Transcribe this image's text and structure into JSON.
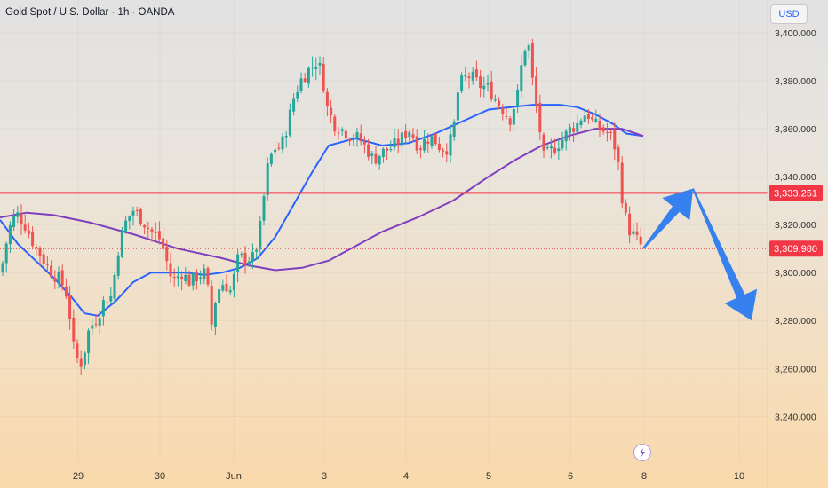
{
  "header": {
    "title": "Gold Spot / U.S. Dollar · 1h · OANDA",
    "currency_label": "USD"
  },
  "colors": {
    "up": "#26a69a",
    "down": "#ef5350",
    "price_line": "#f23645",
    "ma_fast": "#2962ff",
    "ma_slow": "#7e3fbf",
    "arrow": "#2b7bf0"
  },
  "chart_data": {
    "type": "candlestick",
    "symbol": "XAUUSD",
    "yticks": [
      3400,
      3380,
      3360,
      3340,
      3320,
      3300,
      3280,
      3260,
      3240
    ],
    "ytick_labels": [
      "3,400.000",
      "3,380.000",
      "3,360.000",
      "3,340.000",
      "3,320.000",
      "3,300.000",
      "3,280.000",
      "3,260.000",
      "3,240.000"
    ],
    "ylim": [
      3231,
      3410
    ],
    "xtick_labels": [
      "29",
      "30",
      "Jun",
      "3",
      "4",
      "5",
      "6",
      "8",
      "10"
    ],
    "price_labels": [
      {
        "label": "3,333.251",
        "value": 3333.251,
        "style": "line"
      },
      {
        "label": "3,309.980",
        "value": 3309.98,
        "style": "dotted"
      }
    ],
    "series": [
      {
        "name": "fast MA",
        "points": [
          [
            0,
            3322
          ],
          [
            20,
            3312
          ],
          [
            40,
            3305
          ],
          [
            60,
            3298
          ],
          [
            80,
            3290
          ],
          [
            95,
            3283
          ],
          [
            110,
            3282
          ],
          [
            130,
            3288
          ],
          [
            150,
            3296
          ],
          [
            170,
            3300
          ],
          [
            190,
            3300
          ],
          [
            210,
            3300
          ],
          [
            230,
            3299
          ],
          [
            250,
            3300
          ],
          [
            270,
            3302
          ],
          [
            290,
            3306
          ],
          [
            310,
            3315
          ],
          [
            330,
            3328
          ],
          [
            350,
            3341
          ],
          [
            370,
            3353
          ],
          [
            400,
            3356
          ],
          [
            430,
            3353
          ],
          [
            460,
            3354
          ],
          [
            490,
            3358
          ],
          [
            520,
            3363
          ],
          [
            550,
            3368
          ],
          [
            575,
            3369
          ],
          [
            600,
            3370
          ],
          [
            630,
            3370
          ],
          [
            650,
            3369
          ],
          [
            670,
            3366
          ],
          [
            690,
            3362
          ],
          [
            705,
            3358
          ],
          [
            724,
            3357
          ]
        ]
      },
      {
        "name": "slow MA",
        "points": [
          [
            0,
            3323
          ],
          [
            30,
            3325
          ],
          [
            60,
            3324
          ],
          [
            100,
            3321
          ],
          [
            150,
            3316
          ],
          [
            200,
            3310
          ],
          [
            250,
            3306
          ],
          [
            280,
            3303
          ],
          [
            310,
            3301
          ],
          [
            340,
            3302
          ],
          [
            370,
            3305
          ],
          [
            400,
            3311
          ],
          [
            430,
            3317
          ],
          [
            470,
            3323
          ],
          [
            510,
            3330
          ],
          [
            550,
            3340
          ],
          [
            580,
            3347
          ],
          [
            610,
            3353
          ],
          [
            640,
            3357
          ],
          [
            670,
            3360
          ],
          [
            700,
            3360
          ],
          [
            724,
            3357
          ]
        ]
      }
    ],
    "projection_arrows": [
      {
        "from": [
          3310,
          "8"
        ],
        "to": [
          3335,
          "after 8"
        ]
      },
      {
        "from": [
          3335,
          "after 8"
        ],
        "to": [
          3280,
          "10"
        ]
      }
    ]
  }
}
